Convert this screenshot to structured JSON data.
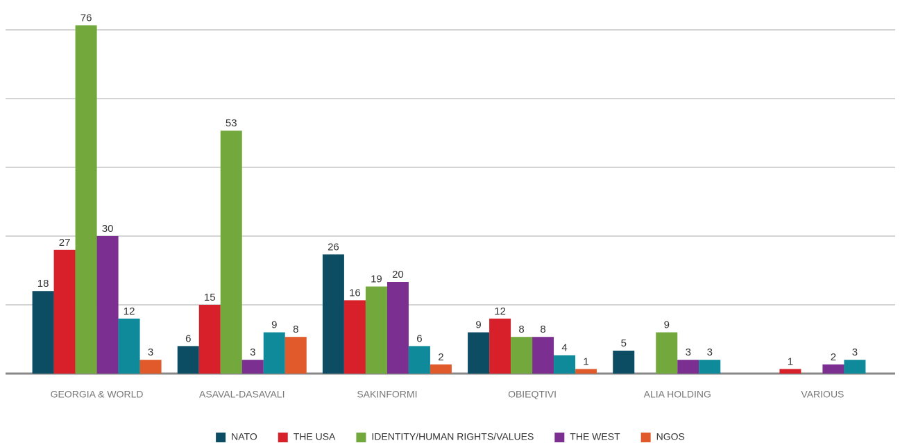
{
  "chart_data": {
    "type": "bar",
    "categories": [
      "GEORGIA & WORLD",
      "ASAVAL-DASAVALI",
      "SAKINFORMI",
      "OBIEQTIVI",
      "ALIA HOLDING",
      "VARIOUS"
    ],
    "series": [
      {
        "name": "NATO",
        "color": "#0d4d64",
        "values": [
          18,
          6,
          26,
          9,
          5,
          null
        ]
      },
      {
        "name": "THE USA",
        "color": "#d7202a",
        "values": [
          27,
          15,
          16,
          12,
          null,
          1
        ]
      },
      {
        "name": "IDENTITY/HUMAN RIGHTS/VALUES",
        "color": "#72a83c",
        "values": [
          76,
          53,
          19,
          8,
          9,
          null
        ]
      },
      {
        "name": "THE WEST",
        "color": "#7b2f91",
        "values": [
          30,
          3,
          20,
          8,
          3,
          2
        ]
      },
      {
        "color": "#0e8a9a",
        "values": [
          12,
          9,
          6,
          4,
          3,
          3
        ]
      },
      {
        "name": "NGOS",
        "color": "#e05a2b",
        "values": [
          3,
          8,
          2,
          1,
          null,
          null
        ]
      }
    ],
    "ylim": [
      0,
      80
    ],
    "yticks": [
      0,
      15,
      30,
      45,
      60,
      75
    ],
    "grid": true,
    "legend": "bottom"
  }
}
